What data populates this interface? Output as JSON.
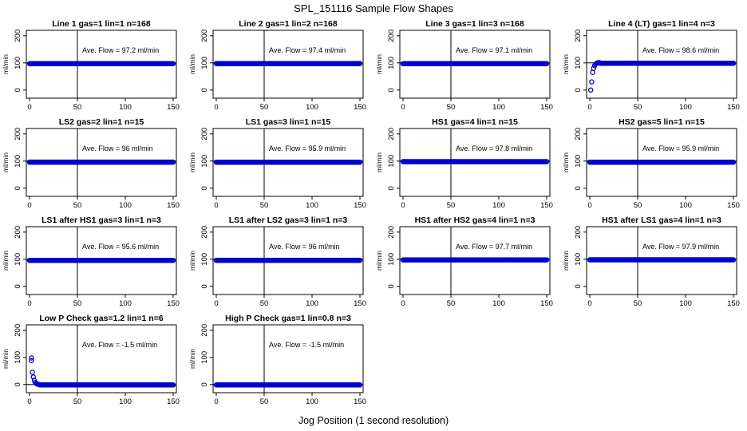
{
  "figure": {
    "title": "SPL_151116  Sample Flow Shapes",
    "xlabel": "Jog Position (1 second resolution)"
  },
  "chart_data": [
    {
      "type": "scatter",
      "title": "Line 1 gas=1 lin=1 n=168",
      "ylabel": "ml/min",
      "annotation": "Ave. Flow = 97.2  ml/min",
      "xlim": [
        0,
        150
      ],
      "ylim": [
        -30,
        220
      ],
      "xticks": [
        0,
        50,
        100,
        150
      ],
      "yticks": [
        0,
        100,
        200
      ],
      "vline": 50,
      "hline": 100,
      "shape": "flat",
      "level": 97.2
    },
    {
      "type": "scatter",
      "title": "Line 2 gas=1 lin=2 n=168",
      "ylabel": "ml/min",
      "annotation": "Ave. Flow = 97.4  ml/min",
      "xlim": [
        0,
        150
      ],
      "ylim": [
        -30,
        220
      ],
      "xticks": [
        0,
        50,
        100,
        150
      ],
      "yticks": [
        0,
        100,
        200
      ],
      "vline": 50,
      "hline": 100,
      "shape": "flat",
      "level": 97.4
    },
    {
      "type": "scatter",
      "title": "Line 3 gas=1 lin=3 n=168",
      "ylabel": "ml/min",
      "annotation": "Ave. Flow = 97.1  ml/min",
      "xlim": [
        0,
        150
      ],
      "ylim": [
        -30,
        220
      ],
      "xticks": [
        0,
        50,
        100,
        150
      ],
      "yticks": [
        0,
        100,
        200
      ],
      "vline": 50,
      "hline": 100,
      "shape": "flat",
      "level": 97.1
    },
    {
      "type": "scatter",
      "title": "Line 4 (LT) gas=1 lin=4 n=3",
      "ylabel": "ml/min",
      "annotation": "Ave. Flow = 98.6  ml/min",
      "xlim": [
        0,
        150
      ],
      "ylim": [
        -30,
        220
      ],
      "xticks": [
        0,
        50,
        100,
        150
      ],
      "yticks": [
        0,
        100,
        200
      ],
      "vline": 50,
      "hline": 100,
      "shape": "rise",
      "level": 98.6,
      "early_points": [
        [
          1,
          0
        ],
        [
          2,
          30
        ],
        [
          3,
          65
        ],
        [
          4,
          80
        ],
        [
          5,
          90
        ],
        [
          6,
          95
        ],
        [
          7,
          98
        ],
        [
          8,
          100
        ],
        [
          9,
          101
        ],
        [
          10,
          101
        ]
      ]
    },
    {
      "type": "scatter",
      "title": "LS2 gas=2 lin=1 n=15",
      "ylabel": "ml/min",
      "annotation": "Ave. Flow = 96  ml/min",
      "xlim": [
        0,
        150
      ],
      "ylim": [
        -30,
        220
      ],
      "xticks": [
        0,
        50,
        100,
        150
      ],
      "yticks": [
        0,
        100,
        200
      ],
      "vline": 50,
      "hline": 100,
      "shape": "flat",
      "level": 96
    },
    {
      "type": "scatter",
      "title": "LS1 gas=3 lin=1 n=15",
      "ylabel": "ml/min",
      "annotation": "Ave. Flow = 95.9  ml/min",
      "xlim": [
        0,
        150
      ],
      "ylim": [
        -30,
        220
      ],
      "xticks": [
        0,
        50,
        100,
        150
      ],
      "yticks": [
        0,
        100,
        200
      ],
      "vline": 50,
      "hline": 100,
      "shape": "flat",
      "level": 95.9
    },
    {
      "type": "scatter",
      "title": "HS1 gas=4 lin=1 n=15",
      "ylabel": "ml/min",
      "annotation": "Ave. Flow = 97.8  ml/min",
      "xlim": [
        0,
        150
      ],
      "ylim": [
        -30,
        220
      ],
      "xticks": [
        0,
        50,
        100,
        150
      ],
      "yticks": [
        0,
        100,
        200
      ],
      "vline": 50,
      "hline": 100,
      "shape": "flat",
      "level": 97.8
    },
    {
      "type": "scatter",
      "title": "HS2 gas=5 lin=1 n=15",
      "ylabel": "ml/min",
      "annotation": "Ave. Flow = 95.9  ml/min",
      "xlim": [
        0,
        150
      ],
      "ylim": [
        -30,
        220
      ],
      "xticks": [
        0,
        50,
        100,
        150
      ],
      "yticks": [
        0,
        100,
        200
      ],
      "vline": 50,
      "hline": 100,
      "shape": "flat",
      "level": 95.9
    },
    {
      "type": "scatter",
      "title": "LS1 after HS1 gas=3 lin=1 n=3",
      "ylabel": "ml/min",
      "annotation": "Ave. Flow = 95.6  ml/min",
      "xlim": [
        0,
        150
      ],
      "ylim": [
        -30,
        220
      ],
      "xticks": [
        0,
        50,
        100,
        150
      ],
      "yticks": [
        0,
        100,
        200
      ],
      "vline": 50,
      "hline": 100,
      "shape": "flat",
      "level": 95.6
    },
    {
      "type": "scatter",
      "title": "LS1 after LS2 gas=3 lin=1 n=3",
      "ylabel": "ml/min",
      "annotation": "Ave. Flow = 96  ml/min",
      "xlim": [
        0,
        150
      ],
      "ylim": [
        -30,
        220
      ],
      "xticks": [
        0,
        50,
        100,
        150
      ],
      "yticks": [
        0,
        100,
        200
      ],
      "vline": 50,
      "hline": 100,
      "shape": "flat",
      "level": 96
    },
    {
      "type": "scatter",
      "title": "HS1 after HS2 gas=4 lin=1 n=3",
      "ylabel": "ml/min",
      "annotation": "Ave. Flow = 97.7  ml/min",
      "xlim": [
        0,
        150
      ],
      "ylim": [
        -30,
        220
      ],
      "xticks": [
        0,
        50,
        100,
        150
      ],
      "yticks": [
        0,
        100,
        200
      ],
      "vline": 50,
      "hline": 100,
      "shape": "flat",
      "level": 97.7
    },
    {
      "type": "scatter",
      "title": "HS1 after LS1 gas=4 lin=1 n=3",
      "ylabel": "ml/min",
      "annotation": "Ave. Flow = 97.9  ml/min",
      "xlim": [
        0,
        150
      ],
      "ylim": [
        -30,
        220
      ],
      "xticks": [
        0,
        50,
        100,
        150
      ],
      "yticks": [
        0,
        100,
        200
      ],
      "vline": 50,
      "hline": 100,
      "shape": "flat",
      "level": 97.9
    },
    {
      "type": "scatter",
      "title": "Low P Check gas=1.2 lin=1 n=6",
      "ylabel": "ml/min",
      "annotation": "Ave. Flow = -1.5  ml/min",
      "xlim": [
        0,
        150
      ],
      "ylim": [
        -30,
        220
      ],
      "xticks": [
        0,
        50,
        100,
        150
      ],
      "yticks": [
        0,
        100,
        200
      ],
      "vline": 50,
      "hline": 0,
      "shape": "decay",
      "level": -1.5,
      "early_points": [
        [
          2,
          98
        ],
        [
          2,
          88
        ],
        [
          3,
          45
        ],
        [
          4,
          28
        ],
        [
          5,
          15
        ],
        [
          6,
          8
        ],
        [
          7,
          4
        ],
        [
          8,
          2
        ],
        [
          9,
          1
        ],
        [
          10,
          0
        ]
      ]
    },
    {
      "type": "scatter",
      "title": "High P Check gas=1 lin=0.8 n=3",
      "ylabel": "ml/min",
      "annotation": "Ave. Flow = -1.5  ml/min",
      "xlim": [
        0,
        150
      ],
      "ylim": [
        -30,
        220
      ],
      "xticks": [
        0,
        50,
        100,
        150
      ],
      "yticks": [
        0,
        100,
        200
      ],
      "vline": 50,
      "hline": 0,
      "shape": "flat",
      "level": -1.5
    }
  ]
}
